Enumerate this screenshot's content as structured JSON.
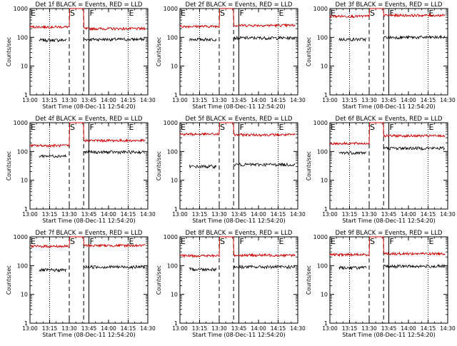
{
  "chart_data": {
    "type": "line",
    "panel_count": 9,
    "y_scale": "log",
    "ylim": [
      1,
      1000
    ],
    "y_ticks": [
      1,
      10,
      100,
      1000
    ],
    "y_tick_labels": [
      "1",
      "10",
      "100",
      "1000"
    ],
    "ylabel": "Counts/sec",
    "x_start": "13:00",
    "x_end": "14:30",
    "x_ticks": [
      "13:00",
      "13:15",
      "13:30",
      "13:45",
      "14:00",
      "14:15",
      "14:30"
    ],
    "xlabel": "Start Time (08-Dec-11 12:54:20)",
    "series_colors": {
      "events": "#000000",
      "lld": "#cc0000"
    },
    "markers": {
      "dotted": [
        "13:15",
        "13:45",
        "14:15"
      ],
      "dashed": [
        "13:30",
        "13:41"
      ],
      "solid": [
        "13:45"
      ],
      "letters": [
        "E",
        "S",
        "F",
        "E"
      ],
      "letter_times": [
        "13:00",
        "13:30",
        "13:45",
        "14:15"
      ]
    },
    "panels": [
      {
        "title": "Det 1f BLACK = Events, RED = LLD",
        "events_level": 80,
        "lld_level": 230,
        "events_post": 85,
        "lld_post": 200
      },
      {
        "title": "Det 2f BLACK = Events, RED = LLD",
        "events_level": 85,
        "lld_level": 240,
        "events_post": 95,
        "lld_post": 260
      },
      {
        "title": "Det 3f BLACK = Events, RED = LLD",
        "events_level": 85,
        "lld_level": 540,
        "events_post": 100,
        "lld_post": 580
      },
      {
        "title": "Det 4f BLACK = Events, RED = LLD",
        "events_level": 70,
        "lld_level": 160,
        "events_post": 95,
        "lld_post": 240
      },
      {
        "title": "Det 5f BLACK = Events, RED = LLD",
        "events_level": 30,
        "lld_level": 400,
        "events_post": 35,
        "lld_post": 380
      },
      {
        "title": "Det 6f BLACK = Events, RED = LLD",
        "events_level": 90,
        "lld_level": 190,
        "events_post": 130,
        "lld_post": 350
      },
      {
        "title": "Det 7f BLACK = Events, RED = LLD",
        "events_level": 70,
        "lld_level": 470,
        "events_post": 90,
        "lld_post": 500
      },
      {
        "title": "Det 8f BLACK = Events, RED = LLD",
        "events_level": 75,
        "lld_level": 220,
        "events_post": 90,
        "lld_post": 230
      },
      {
        "title": "Det 9f BLACK = Events, RED = LLD",
        "events_level": 85,
        "lld_level": 240,
        "events_post": 95,
        "lld_post": 260
      }
    ]
  }
}
